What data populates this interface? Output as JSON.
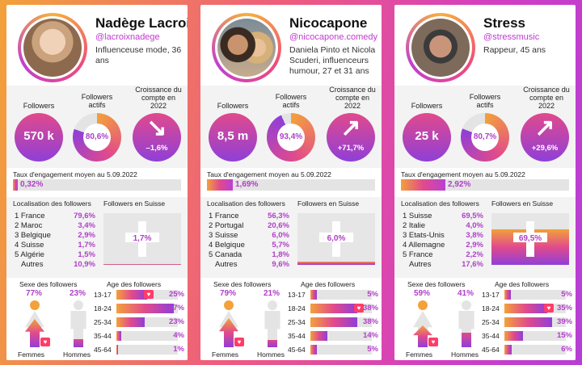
{
  "labels": {
    "followers": "Followers",
    "active": "Followers actifs",
    "growth": "Croissance du compte en 2022",
    "engagement": "Taux d'engagement moyen au 5.09.2022",
    "location": "Localisation des followers",
    "swiss": "Followers en Suisse",
    "sex": "Sexe des followers",
    "age": "Age des followers",
    "women": "Femmes",
    "men": "Hommes"
  },
  "colors": {
    "accent": "#b03ec8",
    "orange": "#f3a13b",
    "pink": "#e14a8c",
    "violet": "#8f3fd8",
    "heart": "#ff3d68"
  },
  "cards": [
    {
      "name": "Nadège Lacroix",
      "handle": "@lacroixnadege",
      "desc": "Influenceuse mode, 36 ans",
      "followers": "570 k",
      "active_label": "80,6%",
      "active": 0.806,
      "growth_label": "–1,6%",
      "growth_icon": "arrow-down-right-icon",
      "growth_glyph": "↘",
      "engagement_label": "0,32%",
      "engagement": 0.0032,
      "locations": [
        {
          "country": "1 France",
          "pct": "79,6%"
        },
        {
          "country": "2 Maroc",
          "pct": "3,4%"
        },
        {
          "country": "3 Belgique",
          "pct": "2,9%"
        },
        {
          "country": "4 Suisse",
          "pct": "1,7%"
        },
        {
          "country": "5 Algérie",
          "pct": "1,5%"
        },
        {
          "country": "Autres",
          "pct": "10,9%"
        }
      ],
      "swiss_label": "1,7%",
      "swiss": 0.017,
      "women_label": "77%",
      "women": 0.77,
      "men_label": "23%",
      "men": 0.23,
      "ages": [
        {
          "range": "13-17",
          "pct": "25%",
          "value": 0.25,
          "heart": true
        },
        {
          "range": "18-24",
          "pct": "47%",
          "value": 0.47,
          "heart": false
        },
        {
          "range": "25-34",
          "pct": "23%",
          "value": 0.23,
          "heart": false
        },
        {
          "range": "35-44",
          "pct": "4%",
          "value": 0.04,
          "heart": false
        },
        {
          "range": "45-64",
          "pct": "1%",
          "value": 0.01,
          "heart": false
        }
      ]
    },
    {
      "name": "Nicocapone",
      "handle": "@nicocapone.comedy",
      "desc": "Daniela Pinto et Nicola Scuderi, influenceurs humour, 27 et 31 ans",
      "followers": "8,5 m",
      "active_label": "93,4%",
      "active": 0.934,
      "growth_label": "+71,7%",
      "growth_icon": "arrow-up-right-icon",
      "growth_glyph": "↗",
      "engagement_label": "1,69%",
      "engagement": 0.0169,
      "locations": [
        {
          "country": "1 France",
          "pct": "56,3%"
        },
        {
          "country": "2 Portugal",
          "pct": "20,6%"
        },
        {
          "country": "3 Suisse",
          "pct": "6,0%"
        },
        {
          "country": "4 Belgique",
          "pct": "5,7%"
        },
        {
          "country": "5 Canada",
          "pct": "1,8%"
        },
        {
          "country": "Autres",
          "pct": "9,6%"
        }
      ],
      "swiss_label": "6,0%",
      "swiss": 0.06,
      "women_label": "79%",
      "women": 0.79,
      "men_label": "21%",
      "men": 0.21,
      "ages": [
        {
          "range": "13-17",
          "pct": "5%",
          "value": 0.05,
          "heart": false
        },
        {
          "range": "18-24",
          "pct": "38%",
          "value": 0.38,
          "heart": true
        },
        {
          "range": "25-34",
          "pct": "38%",
          "value": 0.38,
          "heart": false
        },
        {
          "range": "35-44",
          "pct": "14%",
          "value": 0.14,
          "heart": false
        },
        {
          "range": "45-64",
          "pct": "5%",
          "value": 0.05,
          "heart": false
        }
      ]
    },
    {
      "name": "Stress",
      "handle": "@stressmusic",
      "desc": "Rappeur, 45 ans",
      "followers": "25 k",
      "active_label": "80,7%",
      "active": 0.807,
      "growth_label": "+29,6%",
      "growth_icon": "arrow-up-right-icon",
      "growth_glyph": "↗",
      "engagement_label": "2,92%",
      "engagement": 0.0292,
      "locations": [
        {
          "country": "1 Suisse",
          "pct": "69,5%"
        },
        {
          "country": "2 Italie",
          "pct": "4,0%"
        },
        {
          "country": "3 Etats-Unis",
          "pct": "3,8%"
        },
        {
          "country": "4 Allemagne",
          "pct": "2,9%"
        },
        {
          "country": "5 France",
          "pct": "2,2%"
        },
        {
          "country": "Autres",
          "pct": "17,6%"
        }
      ],
      "swiss_label": "69,5%",
      "swiss": 0.695,
      "women_label": "59%",
      "women": 0.59,
      "men_label": "41%",
      "men": 0.41,
      "ages": [
        {
          "range": "13-17",
          "pct": "5%",
          "value": 0.05,
          "heart": false
        },
        {
          "range": "18-24",
          "pct": "35%",
          "value": 0.35,
          "heart": true
        },
        {
          "range": "25-34",
          "pct": "39%",
          "value": 0.39,
          "heart": false
        },
        {
          "range": "35-44",
          "pct": "15%",
          "value": 0.15,
          "heart": false
        },
        {
          "range": "45-64",
          "pct": "6%",
          "value": 0.06,
          "heart": false
        }
      ]
    }
  ]
}
